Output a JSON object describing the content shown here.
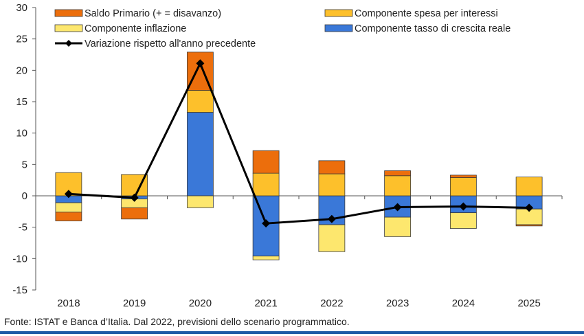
{
  "source_note": "Fonte: ISTAT e Banca d’Italia. Dal 2022, previsioni dello scenario programmatico.",
  "chart_data": {
    "type": "bar",
    "stacked": true,
    "categories": [
      "2018",
      "2019",
      "2020",
      "2021",
      "2022",
      "2023",
      "2024",
      "2025"
    ],
    "ylim": [
      -15,
      30
    ],
    "yticks": [
      -15,
      -10,
      -5,
      0,
      5,
      10,
      15,
      20,
      25,
      30
    ],
    "ytick_labels": [
      "-15",
      "-10",
      "-5",
      "0",
      "5",
      "10",
      "15",
      "20",
      "25",
      "30"
    ],
    "legend_position": "top",
    "series": [
      {
        "name": "Componente tasso di crescita reale",
        "color": "#3a78d8",
        "values": [
          -1.1,
          -0.5,
          13.3,
          -9.6,
          -4.6,
          -3.4,
          -2.7,
          -2.1
        ]
      },
      {
        "name": "Componente inflazione",
        "color": "#fde76e",
        "values": [
          -1.5,
          -1.4,
          -1.9,
          -0.6,
          -4.3,
          -3.1,
          -2.5,
          -2.5
        ]
      },
      {
        "name": "Componente spesa per interessi",
        "color": "#fdc02b",
        "values": [
          3.7,
          3.4,
          3.5,
          3.6,
          3.5,
          3.2,
          2.9,
          3.0
        ]
      },
      {
        "name": "Saldo Primario (+ = disavanzo)",
        "color": "#ec6e0c",
        "values": [
          -1.4,
          -1.8,
          6.1,
          3.6,
          2.1,
          0.8,
          0.4,
          -0.2
        ]
      }
    ],
    "line": {
      "name": "Variazione rispetto all'anno precedente",
      "color": "#000000",
      "values": [
        0.3,
        -0.3,
        21.1,
        -4.4,
        -3.7,
        -1.8,
        -1.7,
        -1.9
      ]
    },
    "legend": [
      {
        "label": "Saldo Primario (+ = disavanzo)",
        "kind": "box",
        "color": "#ec6e0c"
      },
      {
        "label": "Componente spesa per interessi",
        "kind": "box",
        "color": "#fdc02b"
      },
      {
        "label": "Componente inflazione",
        "kind": "box",
        "color": "#fde76e"
      },
      {
        "label": "Componente tasso di crescita reale",
        "kind": "box",
        "color": "#3a78d8"
      },
      {
        "label": "Variazione rispetto all'anno precedente",
        "kind": "line",
        "color": "#000000"
      }
    ]
  }
}
